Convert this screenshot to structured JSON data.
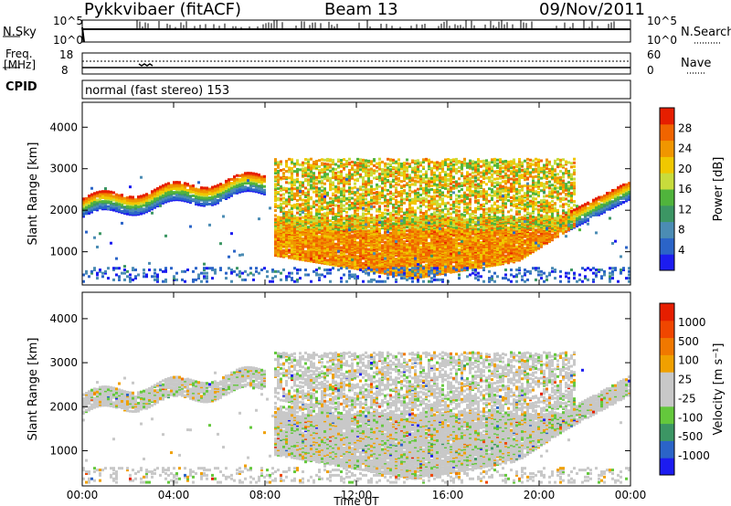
{
  "header": {
    "station": "Pykkvibaer (fitACF)",
    "beam": "Beam 13",
    "date": "09/Nov/2011"
  },
  "top_panels": {
    "nsky_label": "N.Sky",
    "nsearch_label": "N.Search",
    "nsky_ticks": [
      "10^5",
      "10^0"
    ],
    "nsearch_ticks": [
      "10^5",
      "10^0"
    ],
    "freq_label_1": "Freq.",
    "freq_label_2": "[MHz]",
    "freq_ticks": [
      "18",
      "8"
    ],
    "nave_label": "Nave",
    "nave_ticks": [
      "60",
      "0"
    ],
    "cpid_label": "CPID",
    "cpid_value": "normal (fast stereo) 153"
  },
  "colors": {
    "power": [
      "#1c1cf0",
      "#2b64c8",
      "#4b8cb4",
      "#3c9664",
      "#50b43c",
      "#c8dc3c",
      "#f0c800",
      "#f09600",
      "#f06400",
      "#e61e00"
    ],
    "velocity": [
      "#1c1cf0",
      "#2b64c8",
      "#3c9664",
      "#64c83c",
      "#c8c8c8",
      "#c8c8c8",
      "#f0a000",
      "#f07800",
      "#f04600",
      "#e61e00"
    ]
  },
  "chart_data": [
    {
      "type": "heatmap",
      "title": "",
      "xlabel": "Time UT",
      "ylabel": "Slant Range [km]",
      "x_ticks": [
        "00:00",
        "04:00",
        "08:00",
        "12:00",
        "16:00",
        "20:00",
        "00:00"
      ],
      "y_ticks": [
        "1000",
        "2000",
        "3000",
        "4000"
      ],
      "ylim": [
        200,
        4600
      ],
      "colorbar_label": "Power [dB]",
      "colorbar_ticks": [
        "4",
        "8",
        "12",
        "16",
        "20",
        "24",
        "28"
      ],
      "clim": [
        0,
        30
      ]
    },
    {
      "type": "heatmap",
      "title": "",
      "xlabel": "Time UT",
      "ylabel": "Slant Range [km]",
      "x_ticks": [
        "00:00",
        "04:00",
        "08:00",
        "12:00",
        "16:00",
        "20:00",
        "00:00"
      ],
      "y_ticks": [
        "1000",
        "2000",
        "3000",
        "4000"
      ],
      "ylim": [
        200,
        4600
      ],
      "colorbar_label": "Velocity [m s⁻¹]",
      "colorbar_ticks": [
        "1000",
        "500",
        "100",
        "25",
        "-25",
        "-100",
        "-500",
        "-1000"
      ]
    }
  ]
}
